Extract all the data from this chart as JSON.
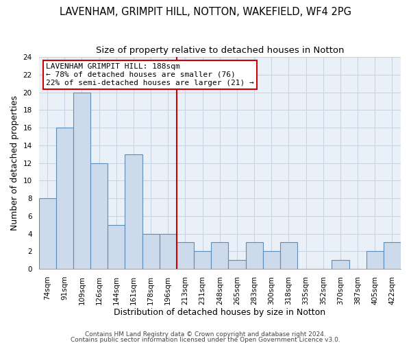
{
  "title": "LAVENHAM, GRIMPIT HILL, NOTTON, WAKEFIELD, WF4 2PG",
  "subtitle": "Size of property relative to detached houses in Notton",
  "xlabel": "Distribution of detached houses by size in Notton",
  "ylabel": "Number of detached properties",
  "bin_labels": [
    "74sqm",
    "91sqm",
    "109sqm",
    "126sqm",
    "144sqm",
    "161sqm",
    "178sqm",
    "196sqm",
    "213sqm",
    "231sqm",
    "248sqm",
    "265sqm",
    "283sqm",
    "300sqm",
    "318sqm",
    "335sqm",
    "352sqm",
    "370sqm",
    "387sqm",
    "405sqm",
    "422sqm"
  ],
  "bin_counts": [
    8,
    16,
    20,
    12,
    5,
    13,
    4,
    4,
    3,
    2,
    3,
    1,
    3,
    2,
    3,
    0,
    0,
    1,
    0,
    2,
    3
  ],
  "bar_color": "#ccdaeb",
  "bar_edge_color": "#5b8db8",
  "vline_color": "#cc0000",
  "annotation_title": "LAVENHAM GRIMPIT HILL: 188sqm",
  "annotation_line1": "← 78% of detached houses are smaller (76)",
  "annotation_line2": "22% of semi-detached houses are larger (21) →",
  "annotation_box_color": "#ffffff",
  "annotation_box_edge": "#cc0000",
  "ylim": [
    0,
    24
  ],
  "yticks": [
    0,
    2,
    4,
    6,
    8,
    10,
    12,
    14,
    16,
    18,
    20,
    22,
    24
  ],
  "footer1": "Contains HM Land Registry data © Crown copyright and database right 2024.",
  "footer2": "Contains public sector information licensed under the Open Government Licence v3.0.",
  "bg_color": "#ffffff",
  "plot_bg_color": "#eaf0f8",
  "grid_color": "#c8d4e4",
  "title_fontsize": 10.5,
  "subtitle_fontsize": 9.5,
  "axis_label_fontsize": 9,
  "tick_fontsize": 7.5,
  "annotation_fontsize": 8,
  "footer_fontsize": 6.5
}
